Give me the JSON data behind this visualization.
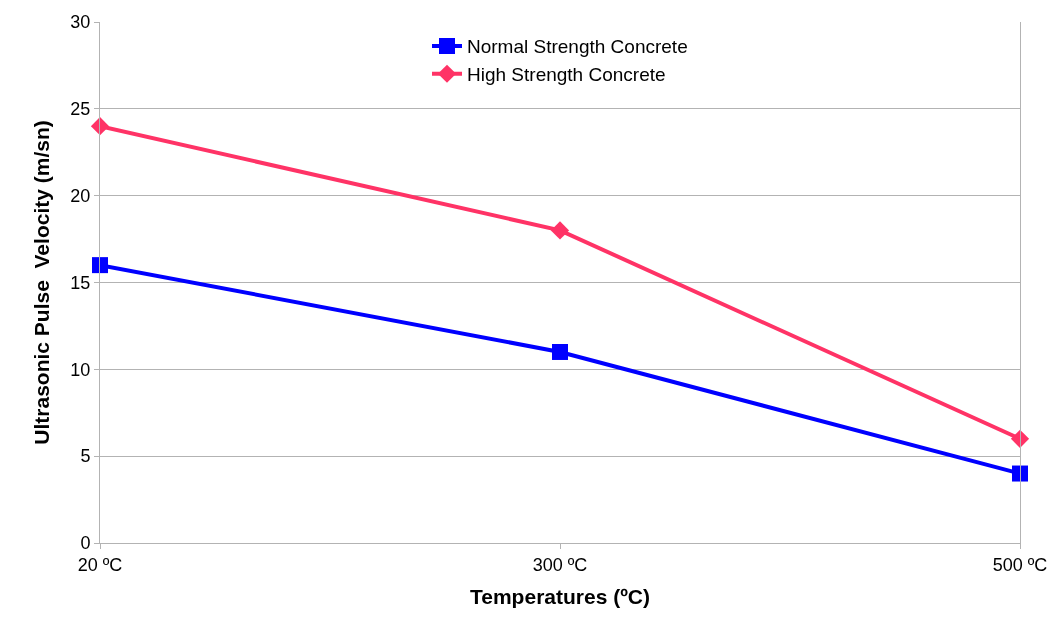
{
  "chart_data": {
    "type": "line",
    "xlabel": "Temperatures (ºC)",
    "ylabel": "Ultrasonic Pulse  Velocity (m/sn)",
    "categories": [
      "20 ºC",
      "300 ºC",
      "500 ºC"
    ],
    "series": [
      {
        "name": "Normal Strength Concrete",
        "color": "#0000ff",
        "marker": "square",
        "values": [
          16,
          11,
          4
        ]
      },
      {
        "name": "High Strength Concrete",
        "color": "#ff3366",
        "marker": "diamond",
        "values": [
          24,
          18,
          6
        ]
      }
    ],
    "ylim": [
      0,
      30
    ],
    "yticks": [
      0,
      5,
      10,
      15,
      20,
      25,
      30
    ],
    "grid": "y",
    "legend": "top",
    "line_style": "solid"
  }
}
